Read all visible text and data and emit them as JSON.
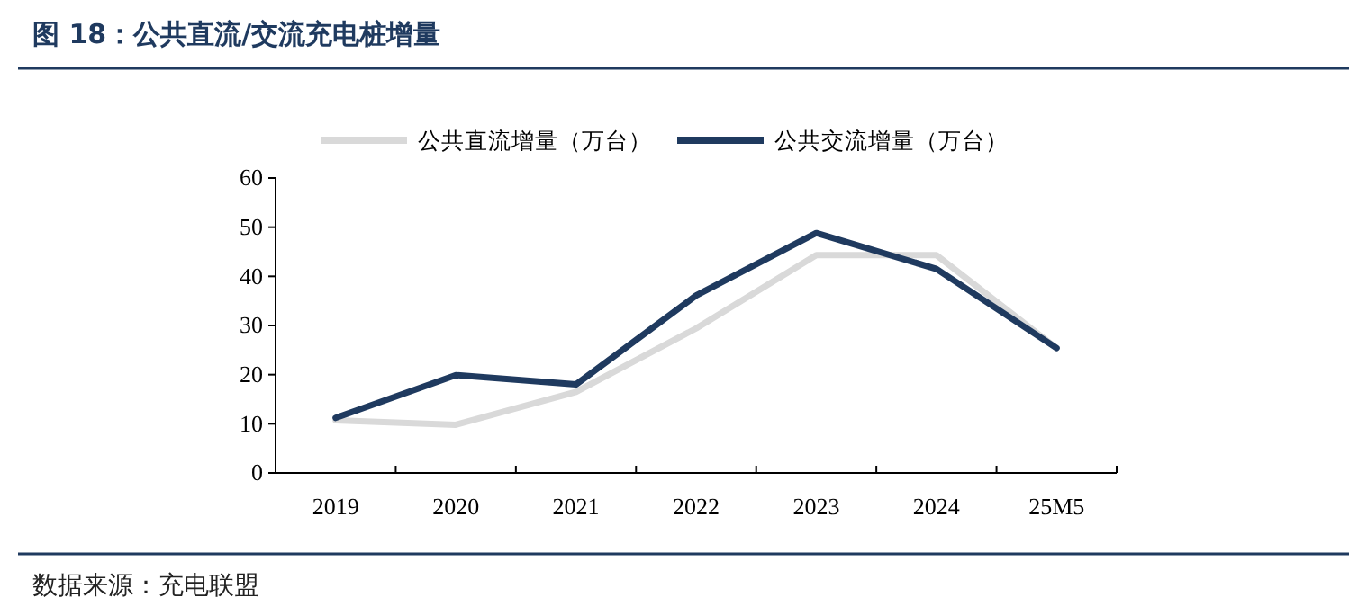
{
  "chart_data": {
    "type": "line",
    "title": "图 18：公共直流/交流充电桩增量",
    "categories": [
      "2019",
      "2020",
      "2021",
      "2022",
      "2023",
      "2024",
      "25M5"
    ],
    "series": [
      {
        "name": "公共直流增量（万台）",
        "color": "#d9d9d9",
        "values": [
          10.7,
          9.8,
          16.5,
          29.4,
          44.3,
          44.3,
          25.4
        ]
      },
      {
        "name": "公共交流增量（万台）",
        "color": "#1f3a5f",
        "values": [
          11.2,
          19.9,
          18.0,
          36.1,
          48.8,
          41.5,
          25.4
        ]
      }
    ],
    "ylim": [
      0,
      60
    ],
    "yticks": [
      0,
      10,
      20,
      30,
      40,
      50,
      60
    ],
    "grid": false,
    "legend": "top",
    "marker": "none",
    "line_style": "solid",
    "annotations": [
      "数据来源：充电联盟"
    ]
  }
}
